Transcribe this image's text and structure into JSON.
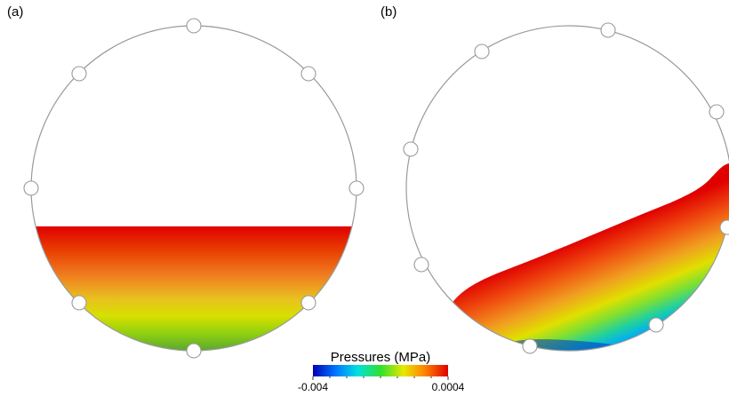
{
  "panels": [
    {
      "label": "(a)"
    },
    {
      "label": "(b)"
    }
  ],
  "colorbar": {
    "title": "Pressures (MPa)",
    "min_label": "-0.004",
    "max_label": "0.0004",
    "colors": [
      "#0000b4",
      "#0078ff",
      "#00e0e0",
      "#30e030",
      "#e8e800",
      "#ff8000",
      "#e00000"
    ]
  }
}
